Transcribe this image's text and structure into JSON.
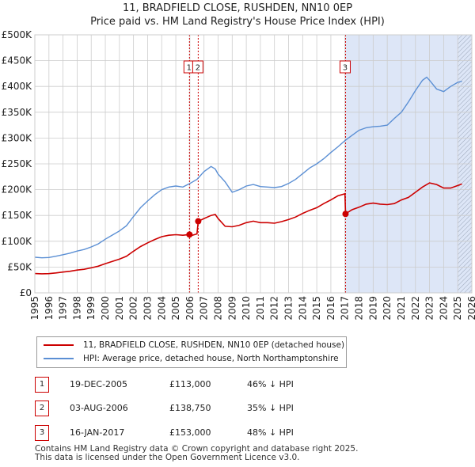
{
  "chart_data": {
    "type": "line",
    "title": "11, BRADFIELD CLOSE, RUSHDEN, NN10 0EP",
    "subtitle": "Price paid vs. HM Land Registry's House Price Index (HPI)",
    "xlabel": "",
    "ylabel": "",
    "xlim": [
      1995,
      2026
    ],
    "ylim": [
      0,
      500000
    ],
    "x_ticks": [
      "1995",
      "1996",
      "1997",
      "1998",
      "1999",
      "2000",
      "2001",
      "2002",
      "2003",
      "2004",
      "2005",
      "2006",
      "2007",
      "2008",
      "2009",
      "2010",
      "2011",
      "2012",
      "2013",
      "2014",
      "2015",
      "2016",
      "2017",
      "2018",
      "2019",
      "2020",
      "2021",
      "2022",
      "2023",
      "2024",
      "2025",
      "2026"
    ],
    "y_ticks": [
      {
        "value": 0,
        "label": "£0"
      },
      {
        "value": 50000,
        "label": "£50K"
      },
      {
        "value": 100000,
        "label": "£100K"
      },
      {
        "value": 150000,
        "label": "£150K"
      },
      {
        "value": 200000,
        "label": "£200K"
      },
      {
        "value": 250000,
        "label": "£250K"
      },
      {
        "value": 300000,
        "label": "£300K"
      },
      {
        "value": 350000,
        "label": "£350K"
      },
      {
        "value": 400000,
        "label": "£400K"
      },
      {
        "value": 450000,
        "label": "£450K"
      },
      {
        "value": 500000,
        "label": "£500K"
      }
    ],
    "colors": {
      "property": "#cc0000",
      "hpi": "#5b8fd4",
      "shade": "#dde6f7",
      "grid": "#cccccc"
    },
    "shaded_region": [
      2017.04,
      2026
    ],
    "hatched_from": 2025.0,
    "markers": [
      {
        "id": "1",
        "x": 2005.97
      },
      {
        "id": "2",
        "x": 2006.59
      },
      {
        "id": "3",
        "x": 2017.04
      }
    ],
    "series": [
      {
        "name": "HPI",
        "x": [
          1995,
          1995.5,
          1996,
          1996.5,
          1997,
          1997.5,
          1998,
          1998.5,
          1999,
          1999.5,
          2000,
          2000.5,
          2001,
          2001.5,
          2002,
          2002.5,
          2003,
          2003.5,
          2004,
          2004.5,
          2005,
          2005.5,
          2006,
          2006.5,
          2007,
          2007.5,
          2007.8,
          2008,
          2008.5,
          2009,
          2009.5,
          2010,
          2010.5,
          2011,
          2011.5,
          2012,
          2012.5,
          2013,
          2013.5,
          2014,
          2014.5,
          2015,
          2015.5,
          2016,
          2016.5,
          2017,
          2017.5,
          2018,
          2018.5,
          2019,
          2019.5,
          2020,
          2020.5,
          2021,
          2021.5,
          2022,
          2022.5,
          2022.8,
          2023,
          2023.5,
          2024,
          2024.5,
          2025,
          2025.3
        ],
        "values": [
          69000,
          68000,
          68500,
          71000,
          74000,
          77000,
          81000,
          84000,
          89000,
          95000,
          104000,
          112000,
          120000,
          130000,
          148000,
          165000,
          178000,
          190000,
          200000,
          205000,
          207000,
          205000,
          212000,
          220000,
          235000,
          245000,
          240000,
          230000,
          215000,
          195000,
          200000,
          207000,
          210000,
          206000,
          205000,
          204000,
          206000,
          212000,
          220000,
          231000,
          242000,
          250000,
          260000,
          272000,
          283000,
          295000,
          305000,
          315000,
          320000,
          322000,
          323000,
          325000,
          338000,
          350000,
          370000,
          392000,
          412000,
          418000,
          412000,
          395000,
          390000,
          400000,
          408000,
          410000
        ]
      },
      {
        "name": "11, BRADFIELD CLOSE, RUSHDEN, NN10 0EP (detached house)",
        "x": [
          1995,
          1995.5,
          1996,
          1996.5,
          1997,
          1997.5,
          1998,
          1998.5,
          1999,
          1999.5,
          2000,
          2000.5,
          2001,
          2001.5,
          2002,
          2002.5,
          2003,
          2003.5,
          2004,
          2004.5,
          2005,
          2005.5,
          2005.97,
          2006,
          2006.5,
          2006.59,
          2007,
          2007.5,
          2007.8,
          2008,
          2008.5,
          2009,
          2009.5,
          2010,
          2010.5,
          2011,
          2011.5,
          2012,
          2012.5,
          2013,
          2013.5,
          2014,
          2014.5,
          2015,
          2015.5,
          2016,
          2016.5,
          2017,
          2017.04,
          2017.5,
          2018,
          2018.5,
          2019,
          2019.5,
          2020,
          2020.5,
          2021,
          2021.5,
          2022,
          2022.5,
          2023,
          2023.5,
          2024,
          2024.5,
          2025,
          2025.3
        ],
        "values": [
          37500,
          37000,
          37300,
          38700,
          40300,
          41900,
          44100,
          45700,
          48500,
          51700,
          56600,
          61000,
          65300,
          70800,
          80600,
          89800,
          96900,
          103400,
          108900,
          111600,
          112700,
          111600,
          113000,
          110300,
          114300,
          138750,
          144000,
          150000,
          152000,
          144000,
          129000,
          128000,
          131000,
          136000,
          139000,
          136000,
          136000,
          135000,
          138000,
          142000,
          147000,
          154000,
          160000,
          165000,
          173000,
          180000,
          188000,
          192000,
          153000,
          161000,
          166000,
          172000,
          174000,
          172000,
          171000,
          173000,
          180000,
          185000,
          195000,
          205000,
          213000,
          210000,
          203000,
          203000,
          208000,
          211000
        ]
      }
    ],
    "legend": [
      {
        "label": "11, BRADFIELD CLOSE, RUSHDEN, NN10 0EP (detached house)",
        "color": "#cc0000"
      },
      {
        "label": "HPI: Average price, detached house, North Northamptonshire",
        "color": "#5b8fd4"
      }
    ],
    "sales": [
      {
        "id": "1",
        "date": "19-DEC-2005",
        "price": "£113,000",
        "hpi": "46% ↓ HPI",
        "x": 2005.97,
        "value": 113000
      },
      {
        "id": "2",
        "date": "03-AUG-2006",
        "price": "£138,750",
        "hpi": "35% ↓ HPI",
        "x": 2006.59,
        "value": 138750
      },
      {
        "id": "3",
        "date": "16-JAN-2017",
        "price": "£153,000",
        "hpi": "48% ↓ HPI",
        "x": 2017.04,
        "value": 153000
      }
    ]
  },
  "footer": {
    "line1": "Contains HM Land Registry data © Crown copyright and database right 2025.",
    "line2": "This data is licensed under the Open Government Licence v3.0."
  }
}
